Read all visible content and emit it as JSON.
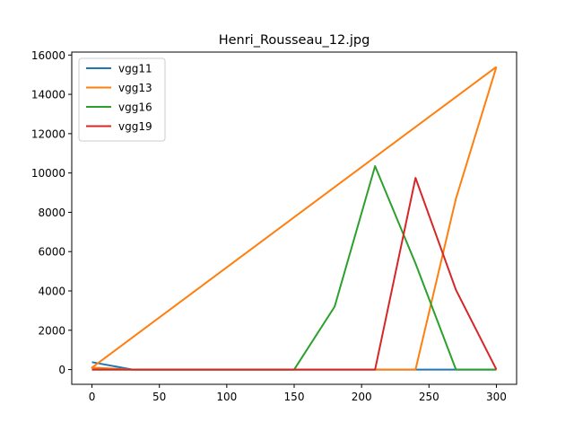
{
  "chart_data": {
    "type": "line",
    "title": "Henri_Rousseau_12.jpg",
    "xlabel": "",
    "ylabel": "",
    "xlim": [
      -15,
      315
    ],
    "ylim": [
      -750,
      16150
    ],
    "xticks": [
      0,
      50,
      100,
      150,
      200,
      250,
      300
    ],
    "yticks": [
      0,
      2000,
      4000,
      6000,
      8000,
      10000,
      12000,
      14000,
      16000
    ],
    "legend_position": "upper-left",
    "series": [
      {
        "name": "vgg11",
        "color": "#1f77b4",
        "points": [
          [
            0,
            380
          ],
          [
            30,
            0
          ],
          [
            60,
            0
          ],
          [
            90,
            0
          ],
          [
            120,
            0
          ],
          [
            150,
            0
          ],
          [
            180,
            0
          ],
          [
            210,
            0
          ],
          [
            240,
            0
          ],
          [
            270,
            0
          ],
          [
            300,
            0
          ]
        ]
      },
      {
        "name": "vgg13",
        "color": "#ff7f0e",
        "points": [
          [
            300,
            15400
          ],
          [
            0,
            100
          ],
          [
            30,
            0
          ],
          [
            60,
            0
          ],
          [
            90,
            0
          ],
          [
            120,
            0
          ],
          [
            150,
            0
          ],
          [
            180,
            0
          ],
          [
            210,
            0
          ],
          [
            240,
            0
          ],
          [
            270,
            8700
          ],
          [
            300,
            15400
          ]
        ]
      },
      {
        "name": "vgg16",
        "color": "#2ca02c",
        "points": [
          [
            0,
            0
          ],
          [
            30,
            0
          ],
          [
            60,
            0
          ],
          [
            90,
            0
          ],
          [
            120,
            0
          ],
          [
            150,
            0
          ],
          [
            180,
            3200
          ],
          [
            210,
            10350
          ],
          [
            240,
            5400
          ],
          [
            270,
            0
          ],
          [
            300,
            0
          ]
        ]
      },
      {
        "name": "vgg19",
        "color": "#d62728",
        "points": [
          [
            0,
            0
          ],
          [
            30,
            0
          ],
          [
            60,
            0
          ],
          [
            90,
            0
          ],
          [
            120,
            0
          ],
          [
            150,
            0
          ],
          [
            180,
            0
          ],
          [
            210,
            0
          ],
          [
            240,
            9750
          ],
          [
            270,
            4050
          ],
          [
            300,
            0
          ]
        ]
      }
    ]
  }
}
